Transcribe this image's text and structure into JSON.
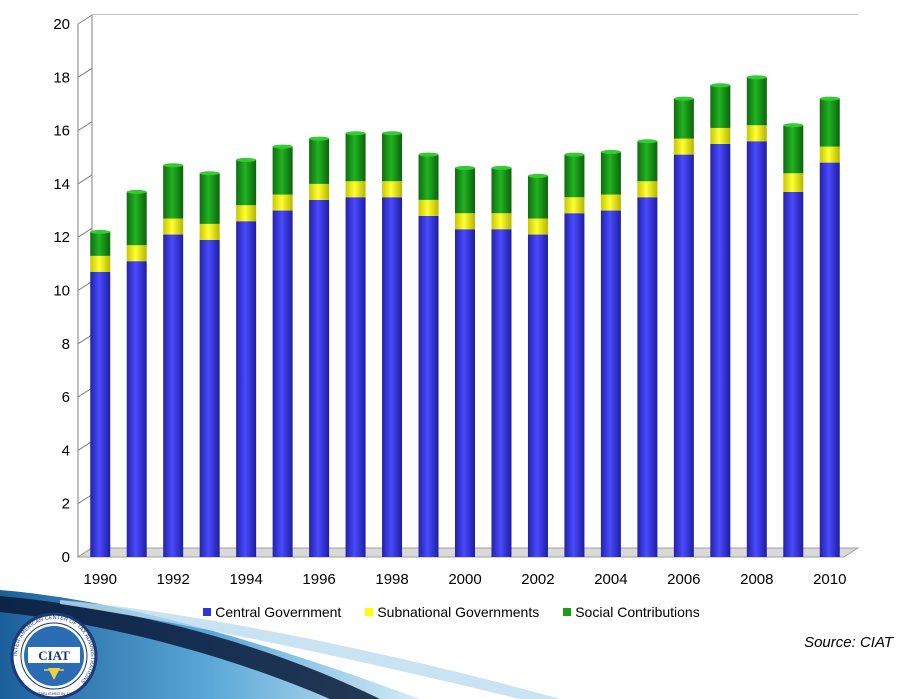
{
  "chart_data": {
    "type": "bar",
    "stacked": true,
    "title": "",
    "xlabel": "",
    "ylabel": "",
    "ylim": [
      0,
      20
    ],
    "yticks": [
      0,
      2,
      4,
      6,
      8,
      10,
      12,
      14,
      16,
      18,
      20
    ],
    "categories": [
      "1990",
      "1991",
      "1992",
      "1993",
      "1994",
      "1995",
      "1996",
      "1997",
      "1998",
      "1999",
      "2000",
      "2001",
      "2002",
      "2003",
      "2004",
      "2005",
      "2006",
      "2007",
      "2008",
      "2009",
      "2010"
    ],
    "xtick_labels": [
      "1990",
      "",
      "1992",
      "",
      "1994",
      "",
      "1996",
      "",
      "1998",
      "",
      "2000",
      "",
      "2002",
      "",
      "2004",
      "",
      "2006",
      "",
      "2008",
      "",
      "2010"
    ],
    "series": [
      {
        "name": "Central Government",
        "color": "#3333dd",
        "values": [
          10.7,
          11.1,
          12.1,
          11.9,
          12.6,
          13.0,
          13.4,
          13.5,
          13.5,
          12.8,
          12.3,
          12.3,
          12.1,
          12.9,
          13.0,
          13.5,
          15.1,
          15.5,
          15.6,
          13.7,
          14.8
        ]
      },
      {
        "name": "Subnational Governments",
        "color": "#ffff00",
        "values": [
          0.6,
          0.6,
          0.6,
          0.6,
          0.6,
          0.6,
          0.6,
          0.6,
          0.6,
          0.6,
          0.6,
          0.6,
          0.6,
          0.6,
          0.6,
          0.6,
          0.6,
          0.6,
          0.6,
          0.7,
          0.6
        ]
      },
      {
        "name": "Social Contributions",
        "color": "#1a9e1a",
        "values": [
          0.9,
          2.0,
          2.0,
          1.9,
          1.7,
          1.8,
          1.7,
          1.8,
          1.8,
          1.7,
          1.7,
          1.7,
          1.6,
          1.6,
          1.6,
          1.5,
          1.5,
          1.6,
          1.8,
          1.8,
          1.8
        ]
      }
    ],
    "legend_position": "bottom",
    "grid": true
  },
  "source": "Source: CIAT",
  "logo": {
    "text": "CIAT",
    "ring_text": "INTER-AMERICAN CENTER OF TAX ADMINISTRATIONS",
    "established": "ESTABLISHED IN 1967"
  }
}
